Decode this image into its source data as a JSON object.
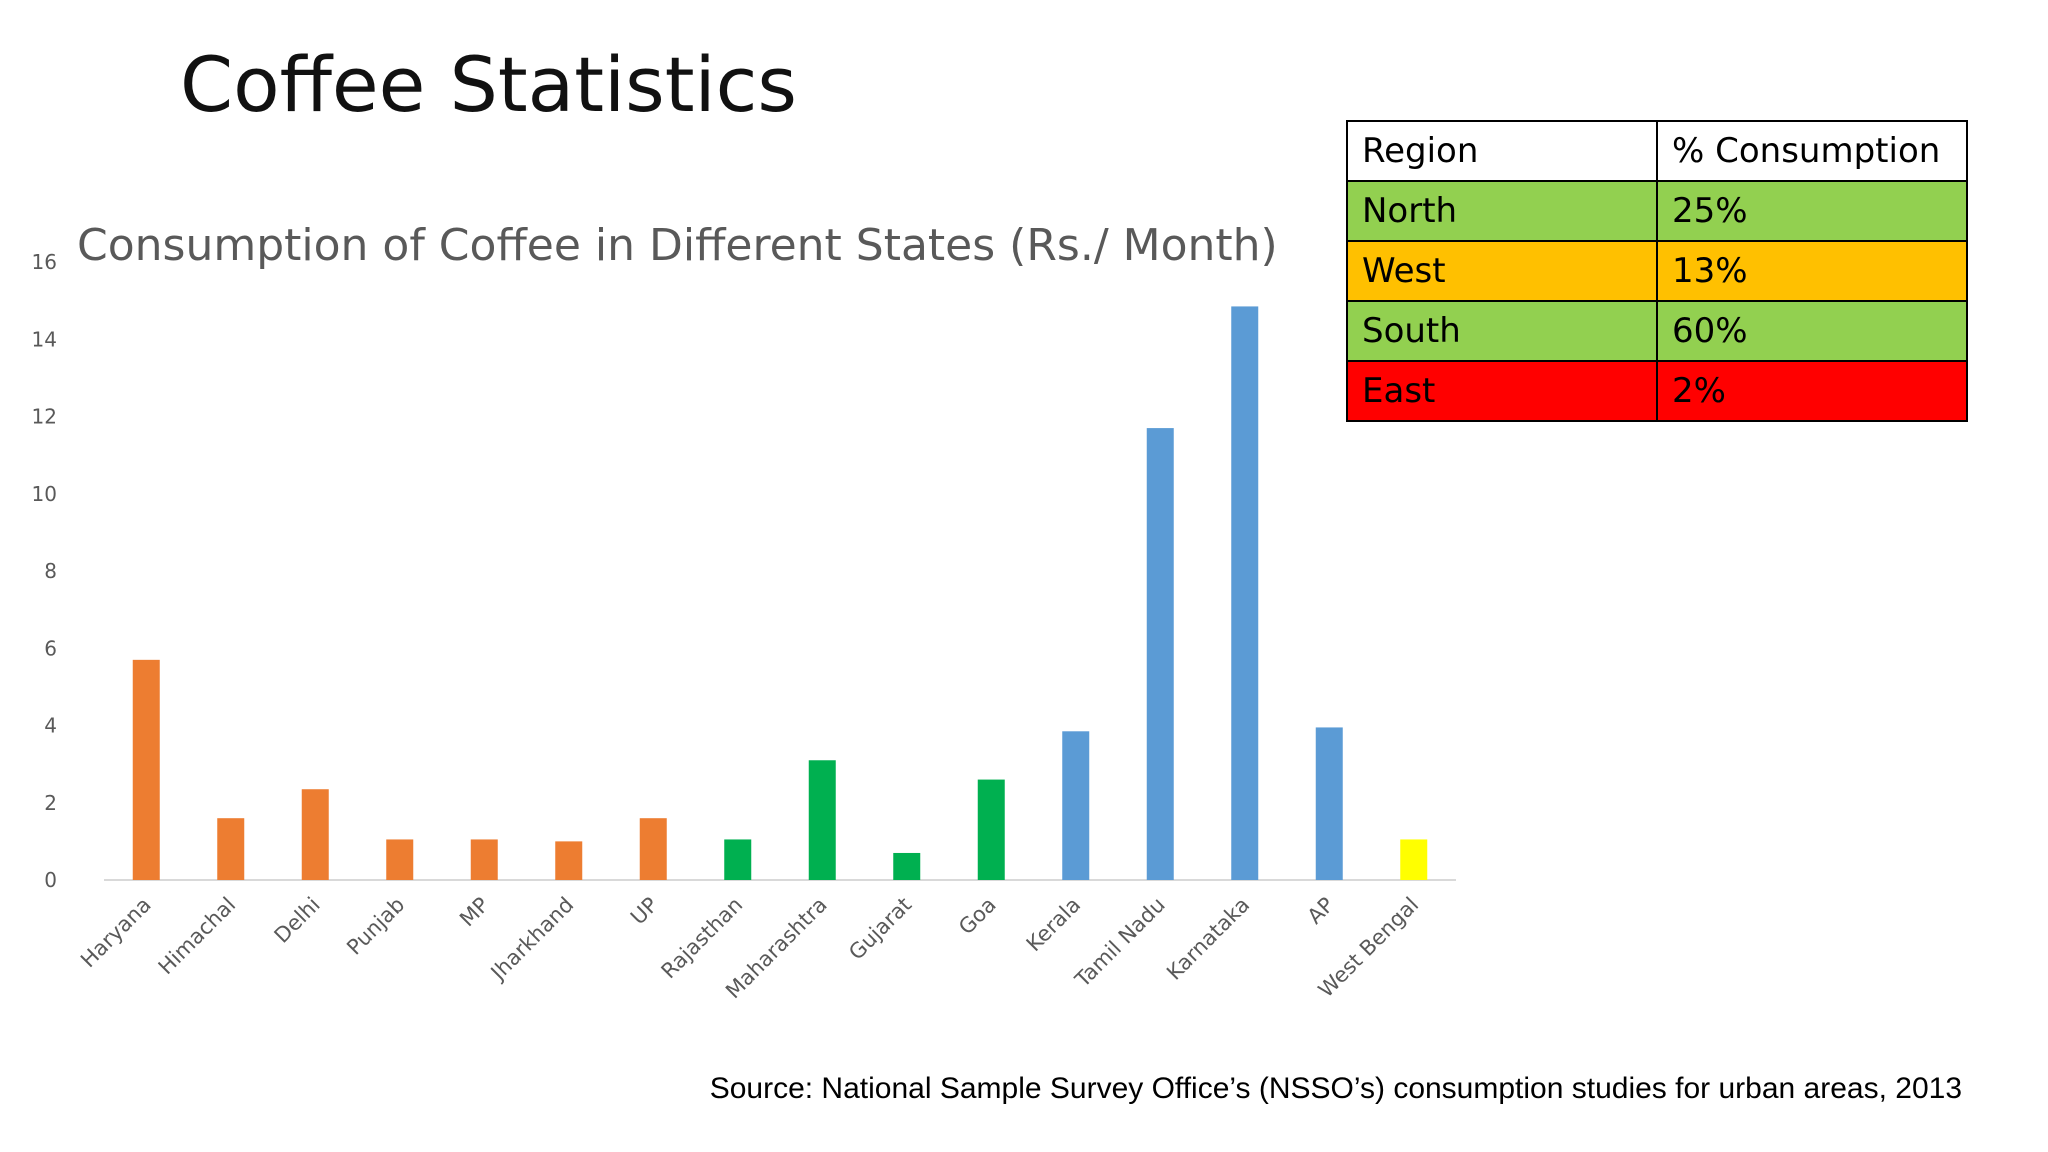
{
  "slide": {
    "title": "Coffee Statistics",
    "source": "Source: National Sample Survey Office’s (NSSO’s) consumption studies for urban areas, 2013"
  },
  "chart_data": {
    "type": "bar",
    "title": "Consumption of Coffee in Different States (Rs./ Month)",
    "xlabel": "",
    "ylabel": "",
    "ylim": [
      0,
      16
    ],
    "yticks": [
      0,
      2,
      4,
      6,
      8,
      10,
      12,
      14,
      16
    ],
    "grid": false,
    "categories": [
      "Haryana",
      "Himachal",
      "Delhi",
      "Punjab",
      "MP",
      "Jharkhand",
      "UP",
      "Rajasthan",
      "Maharashtra",
      "Gujarat",
      "Goa",
      "Kerala",
      "Tamil Nadu",
      "Karnataka",
      "AP",
      "West Bengal"
    ],
    "values": [
      5.7,
      1.6,
      2.35,
      1.05,
      1.05,
      1.0,
      1.6,
      1.05,
      3.1,
      0.7,
      2.6,
      3.85,
      11.7,
      14.85,
      3.95,
      1.05
    ],
    "bar_colors": [
      "#ED7D31",
      "#ED7D31",
      "#ED7D31",
      "#ED7D31",
      "#ED7D31",
      "#ED7D31",
      "#ED7D31",
      "#00B050",
      "#00B050",
      "#00B050",
      "#00B050",
      "#5B9BD5",
      "#5B9BD5",
      "#5B9BD5",
      "#5B9BD5",
      "#FFFF00"
    ]
  },
  "table": {
    "headers": [
      "Region",
      "% Consumption"
    ],
    "rows": [
      {
        "region": "North",
        "pct": "25%",
        "color": "#92D050"
      },
      {
        "region": "West",
        "pct": "13%",
        "color": "#FFC000"
      },
      {
        "region": "South",
        "pct": "60%",
        "color": "#92D050"
      },
      {
        "region": "East",
        "pct": "2%",
        "color": "#FF0000"
      }
    ]
  }
}
